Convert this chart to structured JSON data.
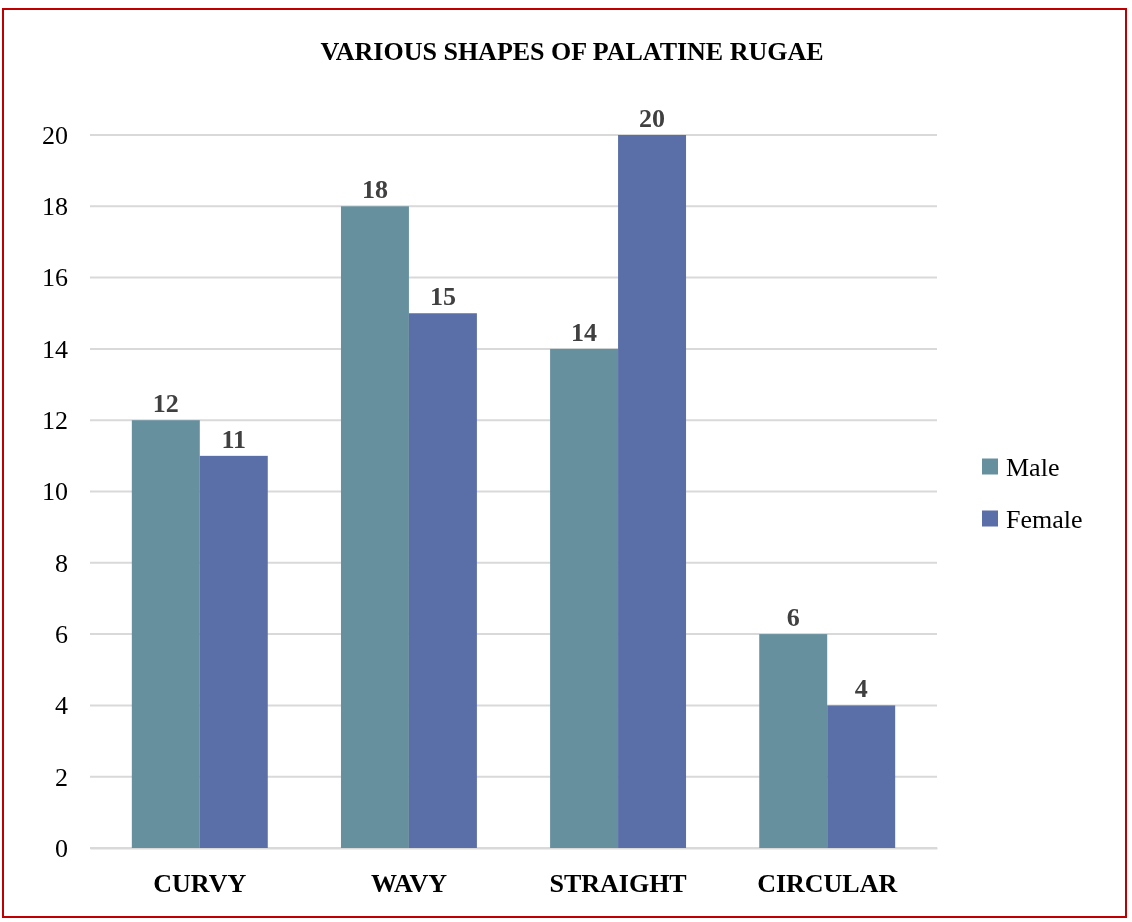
{
  "chart_data": {
    "type": "bar",
    "title": "VARIOUS SHAPES OF PALATINE RUGAE",
    "categories": [
      "CURVY",
      "WAVY",
      "STRAIGHT",
      "CIRCULAR"
    ],
    "series": [
      {
        "name": "Male",
        "color": "#66909e",
        "values": [
          12,
          18,
          14,
          6
        ]
      },
      {
        "name": "Female",
        "color": "#5a6ea8",
        "values": [
          11,
          15,
          20,
          4
        ]
      }
    ],
    "ylim": [
      0,
      20
    ],
    "yticks": [
      0,
      2,
      4,
      6,
      8,
      10,
      12,
      14,
      16,
      18,
      20
    ],
    "grid": "y",
    "legend": "right",
    "data_labels": true
  }
}
